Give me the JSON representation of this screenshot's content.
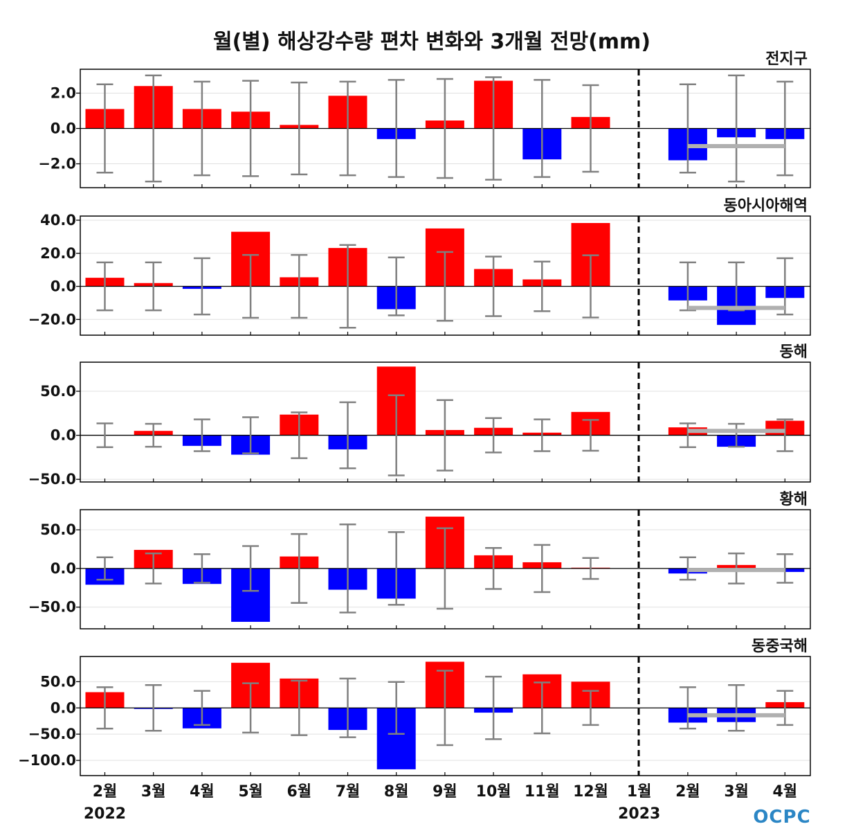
{
  "title": "월(별) 해상강수량 편차 변화와 3개월 전망(mm)",
  "logo_text": "OCPC",
  "colors": {
    "positive": "#ff0000",
    "negative": "#0000ff",
    "errorbar": "#808080",
    "forecast_line": "#b0b0b0",
    "divider": "#000000"
  },
  "x_labels": [
    "2월",
    "3월",
    "4월",
    "5월",
    "6월",
    "7월",
    "8월",
    "9월",
    "10월",
    "11월",
    "12월",
    "1월",
    "2월",
    "3월",
    "4월"
  ],
  "year_labels": [
    {
      "text": "2022",
      "index": 0
    },
    {
      "text": "2023",
      "index": 11
    }
  ],
  "chart_data": [
    {
      "type": "bar",
      "title": "전지구",
      "ylim": [
        -3.35,
        3.35
      ],
      "yticks": [
        2.0,
        0.0,
        -2.0
      ],
      "ytick_labels": [
        "2.0",
        "0.0",
        "−2.0"
      ],
      "values": [
        1.1,
        2.4,
        1.1,
        0.95,
        0.2,
        1.85,
        -0.6,
        0.45,
        2.7,
        -1.75,
        0.65,
        0.0,
        -1.8,
        -0.5,
        -0.6
      ],
      "error_bars": [
        2.5,
        3.0,
        2.65,
        2.7,
        2.6,
        2.65,
        2.75,
        2.8,
        2.9,
        2.75,
        2.45,
        null,
        2.5,
        3.0,
        2.65
      ],
      "forecast_mean": -1.0
    },
    {
      "type": "bar",
      "title": "동아시아해역",
      "ylim": [
        -29.5,
        42.5
      ],
      "yticks": [
        40.0,
        20.0,
        0.0,
        -20.0
      ],
      "ytick_labels": [
        "40.0",
        "20.0",
        "0.0",
        "−20.0"
      ],
      "values": [
        5.2,
        2.0,
        -1.5,
        33.0,
        5.5,
        23.2,
        -13.8,
        35.0,
        10.5,
        4.2,
        38.3,
        0.0,
        -8.5,
        -23.3,
        -7.0
      ],
      "error_bars": [
        14.5,
        14.5,
        17.0,
        19.0,
        19.0,
        25.0,
        17.5,
        20.8,
        18.0,
        15.0,
        18.8,
        null,
        14.5,
        14.5,
        17.0
      ],
      "forecast_mean": -13.0
    },
    {
      "type": "bar",
      "title": "동해",
      "ylim": [
        -53.0,
        83.0
      ],
      "yticks": [
        50.0,
        0.0,
        -50.0
      ],
      "ytick_labels": [
        "50.0",
        "0.0",
        "−50.0"
      ],
      "values": [
        0.0,
        5.0,
        -12.0,
        -22.0,
        23.5,
        -16.0,
        78.0,
        6.0,
        8.5,
        3.0,
        26.5,
        0.0,
        9.0,
        -13.0,
        16.5
      ],
      "error_bars": [
        13.5,
        13.0,
        18.0,
        20.5,
        26.0,
        37.5,
        45.5,
        40.0,
        19.5,
        18.0,
        17.5,
        null,
        13.5,
        13.0,
        18.0
      ],
      "forecast_mean": 5.0
    },
    {
      "type": "bar",
      "title": "황해",
      "ylim": [
        -78.0,
        76.0
      ],
      "yticks": [
        50.0,
        0.0,
        -50.0
      ],
      "ytick_labels": [
        "50.0",
        "0.0",
        "−50.0"
      ],
      "values": [
        -21.0,
        24.0,
        -20.0,
        -69.0,
        15.5,
        -27.5,
        -39.0,
        67.0,
        17.0,
        8.0,
        1.0,
        0.0,
        -6.5,
        4.5,
        -4.5
      ],
      "error_bars": [
        14.5,
        19.5,
        18.5,
        29.0,
        44.5,
        57.0,
        47.0,
        52.0,
        26.5,
        30.5,
        13.5,
        null,
        14.5,
        19.5,
        18.5
      ],
      "forecast_mean": -2.0
    },
    {
      "type": "bar",
      "title": "동중국해",
      "ylim": [
        -129.0,
        98.0
      ],
      "yticks": [
        50.0,
        0.0,
        -50.0,
        -100.0
      ],
      "ytick_labels": [
        "50.0",
        "0.0",
        "−50.0",
        "−100.0"
      ],
      "values": [
        30.0,
        -1.5,
        -39.0,
        86.0,
        56.0,
        -42.0,
        -117.0,
        88.0,
        -9.0,
        64.0,
        50.0,
        0.0,
        -28.0,
        -27.0,
        11.0
      ],
      "error_bars": [
        39.5,
        43.5,
        32.5,
        47.0,
        52.0,
        56.0,
        49.5,
        71.0,
        59.5,
        48.5,
        32.5,
        null,
        39.5,
        43.5,
        32.5
      ],
      "forecast_mean": -14.0
    }
  ]
}
